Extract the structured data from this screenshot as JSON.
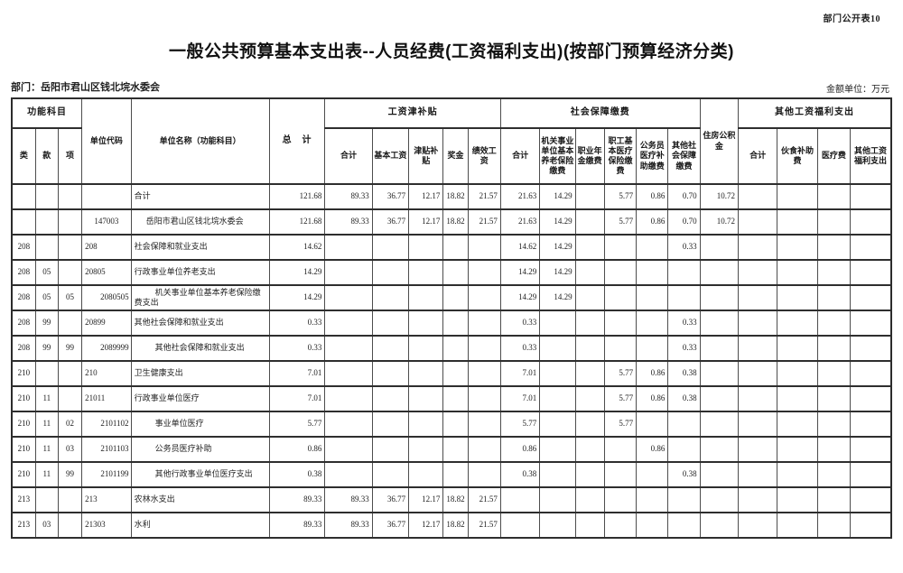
{
  "page": {
    "doc_label": "部门公开表10",
    "title": "一般公共预算基本支出表--人员经费(工资福利支出)(按部门预算经济分类)",
    "department": "部门：岳阳市君山区钱北垸水委会",
    "amount_unit": "金额单位：万元"
  },
  "table": {
    "header": {
      "func_group": "功能科目",
      "func_cols": [
        "类",
        "款",
        "项"
      ],
      "unit_code": "单位代码",
      "unit_name": "单位名称（功能科目）",
      "total": "总　计",
      "wage_group": "工资津补贴",
      "wage_cols": [
        "合计",
        "基本工资",
        "津贴补贴",
        "奖金",
        "绩效工资"
      ],
      "ss_group": "社会保障缴费",
      "ss_cols": [
        "合计",
        "机关事业单位基本养老保险缴费",
        "职业年金缴费",
        "职工基本医疗保险缴费",
        "公务员医疗补助缴费",
        "其他社会保障缴费"
      ],
      "housing": "住房公积金",
      "other_group": "其他工资福利支出",
      "other_cols": [
        "合计",
        "伙食补助费",
        "医疗费",
        "其他工资福利支出"
      ]
    },
    "rows": [
      {
        "cls": "",
        "kuan": "",
        "xiang": "",
        "code": "",
        "code_align": "left",
        "name": "合计",
        "indent": 0,
        "values": [
          "121.68",
          "89.33",
          "36.77",
          "12.17",
          "18.82",
          "21.57",
          "21.63",
          "14.29",
          "",
          "5.77",
          "0.86",
          "0.70",
          "10.72",
          "",
          "",
          "",
          ""
        ]
      },
      {
        "cls": "",
        "kuan": "",
        "xiang": "",
        "code": "147003",
        "code_align": "center",
        "name": "岳阳市君山区钱北垸水委会",
        "indent": 1,
        "values": [
          "121.68",
          "89.33",
          "36.77",
          "12.17",
          "18.82",
          "21.57",
          "21.63",
          "14.29",
          "",
          "5.77",
          "0.86",
          "0.70",
          "10.72",
          "",
          "",
          "",
          ""
        ]
      },
      {
        "cls": "208",
        "kuan": "",
        "xiang": "",
        "code": "208",
        "code_align": "left",
        "name": "社会保障和就业支出",
        "indent": 0,
        "values": [
          "14.62",
          "",
          "",
          "",
          "",
          "",
          "14.62",
          "14.29",
          "",
          "",
          "",
          "0.33",
          "",
          "",
          "",
          "",
          ""
        ]
      },
      {
        "cls": "208",
        "kuan": "05",
        "xiang": "",
        "code": "20805",
        "code_align": "left",
        "name": "行政事业单位养老支出",
        "indent": 0,
        "values": [
          "14.29",
          "",
          "",
          "",
          "",
          "",
          "14.29",
          "14.29",
          "",
          "",
          "",
          "",
          "",
          "",
          "",
          "",
          ""
        ]
      },
      {
        "cls": "208",
        "kuan": "05",
        "xiang": "05",
        "code": "2080505",
        "code_align": "right",
        "name": "机关事业单位基本养老保险缴费支出",
        "indent": 2,
        "values": [
          "14.29",
          "",
          "",
          "",
          "",
          "",
          "14.29",
          "14.29",
          "",
          "",
          "",
          "",
          "",
          "",
          "",
          "",
          ""
        ]
      },
      {
        "cls": "208",
        "kuan": "99",
        "xiang": "",
        "code": "20899",
        "code_align": "left",
        "name": "其他社会保障和就业支出",
        "indent": 0,
        "values": [
          "0.33",
          "",
          "",
          "",
          "",
          "",
          "0.33",
          "",
          "",
          "",
          "",
          "0.33",
          "",
          "",
          "",
          "",
          ""
        ]
      },
      {
        "cls": "208",
        "kuan": "99",
        "xiang": "99",
        "code": "2089999",
        "code_align": "right",
        "name": "其他社会保障和就业支出",
        "indent": 2,
        "values": [
          "0.33",
          "",
          "",
          "",
          "",
          "",
          "0.33",
          "",
          "",
          "",
          "",
          "0.33",
          "",
          "",
          "",
          "",
          ""
        ]
      },
      {
        "cls": "210",
        "kuan": "",
        "xiang": "",
        "code": "210",
        "code_align": "left",
        "name": "卫生健康支出",
        "indent": 0,
        "values": [
          "7.01",
          "",
          "",
          "",
          "",
          "",
          "7.01",
          "",
          "",
          "5.77",
          "0.86",
          "0.38",
          "",
          "",
          "",
          "",
          ""
        ]
      },
      {
        "cls": "210",
        "kuan": "11",
        "xiang": "",
        "code": "21011",
        "code_align": "left",
        "name": "行政事业单位医疗",
        "indent": 0,
        "values": [
          "7.01",
          "",
          "",
          "",
          "",
          "",
          "7.01",
          "",
          "",
          "5.77",
          "0.86",
          "0.38",
          "",
          "",
          "",
          "",
          ""
        ]
      },
      {
        "cls": "210",
        "kuan": "11",
        "xiang": "02",
        "code": "2101102",
        "code_align": "right",
        "name": "事业单位医疗",
        "indent": 2,
        "values": [
          "5.77",
          "",
          "",
          "",
          "",
          "",
          "5.77",
          "",
          "",
          "5.77",
          "",
          "",
          "",
          "",
          "",
          "",
          ""
        ]
      },
      {
        "cls": "210",
        "kuan": "11",
        "xiang": "03",
        "code": "2101103",
        "code_align": "right",
        "name": "公务员医疗补助",
        "indent": 2,
        "values": [
          "0.86",
          "",
          "",
          "",
          "",
          "",
          "0.86",
          "",
          "",
          "",
          "0.86",
          "",
          "",
          "",
          "",
          "",
          ""
        ]
      },
      {
        "cls": "210",
        "kuan": "11",
        "xiang": "99",
        "code": "2101199",
        "code_align": "right",
        "name": "其他行政事业单位医疗支出",
        "indent": 2,
        "values": [
          "0.38",
          "",
          "",
          "",
          "",
          "",
          "0.38",
          "",
          "",
          "",
          "",
          "0.38",
          "",
          "",
          "",
          "",
          ""
        ]
      },
      {
        "cls": "213",
        "kuan": "",
        "xiang": "",
        "code": "213",
        "code_align": "left",
        "name": "农林水支出",
        "indent": 0,
        "values": [
          "89.33",
          "89.33",
          "36.77",
          "12.17",
          "18.82",
          "21.57",
          "",
          "",
          "",
          "",
          "",
          "",
          "",
          "",
          "",
          "",
          ""
        ]
      },
      {
        "cls": "213",
        "kuan": "03",
        "xiang": "",
        "code": "21303",
        "code_align": "left",
        "name": "水利",
        "indent": 0,
        "values": [
          "89.33",
          "89.33",
          "36.77",
          "12.17",
          "18.82",
          "21.57",
          "",
          "",
          "",
          "",
          "",
          "",
          "",
          "",
          "",
          "",
          ""
        ]
      }
    ]
  }
}
